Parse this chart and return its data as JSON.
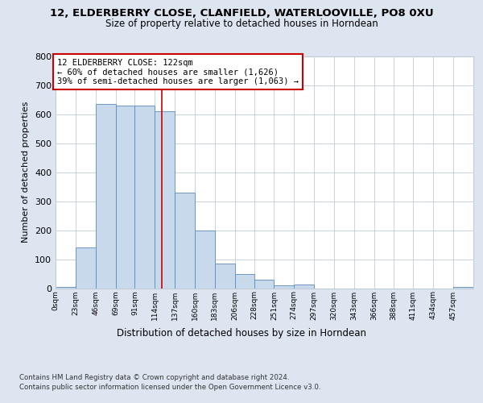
{
  "title1": "12, ELDERBERRY CLOSE, CLANFIELD, WATERLOOVILLE, PO8 0XU",
  "title2": "Size of property relative to detached houses in Horndean",
  "xlabel": "Distribution of detached houses by size in Horndean",
  "ylabel": "Number of detached properties",
  "footer1": "Contains HM Land Registry data © Crown copyright and database right 2024.",
  "footer2": "Contains public sector information licensed under the Open Government Licence v3.0.",
  "annotation_line1": "12 ELDERBERRY CLOSE: 122sqm",
  "annotation_line2": "← 60% of detached houses are smaller (1,626)",
  "annotation_line3": "39% of semi-detached houses are larger (1,063) →",
  "property_size": 122,
  "bin_edges": [
    0,
    23,
    46,
    69,
    91,
    114,
    137,
    160,
    183,
    206,
    228,
    251,
    274,
    297,
    320,
    343,
    366,
    388,
    411,
    434,
    457,
    480
  ],
  "bin_counts": [
    5,
    140,
    635,
    630,
    630,
    610,
    330,
    200,
    85,
    50,
    28,
    10,
    12,
    0,
    0,
    0,
    0,
    0,
    0,
    0,
    5
  ],
  "bar_color": "#c9d9ec",
  "bar_edge_color": "#5b8cbf",
  "vline_color": "#cc0000",
  "vline_x": 122,
  "annotation_box_edge": "#cc0000",
  "ylim": [
    0,
    800
  ],
  "yticks": [
    0,
    100,
    200,
    300,
    400,
    500,
    600,
    700,
    800
  ],
  "background_color": "#dde6f0",
  "axes_background": "#ffffff",
  "grid_color": "#c0ccd8"
}
